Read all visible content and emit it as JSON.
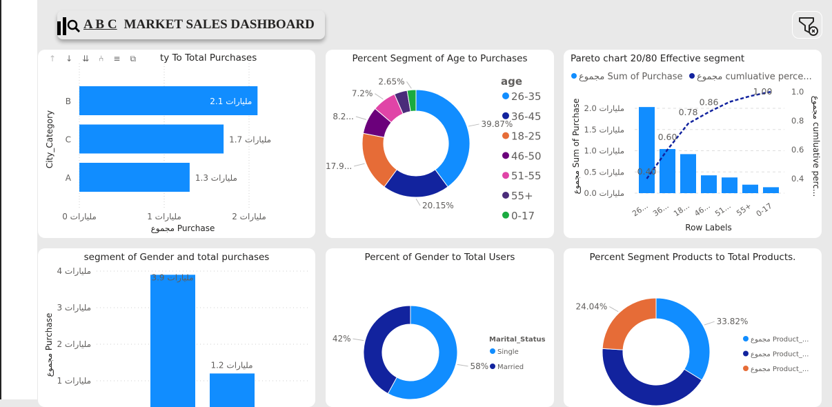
{
  "header": {
    "logo_text": "A B C",
    "title": "MARKET SALES DASHBOARD",
    "filter_icon": "filter-clear-icon"
  },
  "city_chart": {
    "title": "ty To Total Purchases",
    "toolbar_icons": [
      "arrow-up-icon",
      "arrow-down-icon",
      "double-arrow-down-icon",
      "expand-hierarchy-icon",
      "filter-icon",
      "focus-mode-icon"
    ],
    "chart_data": {
      "type": "bar",
      "orientation": "horizontal",
      "categories": [
        "B",
        "C",
        "A"
      ],
      "values": [
        2.1,
        1.7,
        1.3
      ],
      "data_labels": [
        "مليارات 2.1",
        "مليارات 1.7",
        "مليارات 1.3"
      ],
      "xlabel": "مجموع Purchase",
      "ylabel": "City_Category",
      "xticks": [
        "مليارات 0",
        "مليارات 1",
        "مليارات 2"
      ],
      "xlim": [
        0,
        2.5
      ],
      "grid": true,
      "color": "#118dff"
    }
  },
  "age_chart": {
    "title": "Percent Segment of Age to Purchases",
    "chart_data": {
      "type": "pie",
      "donut": true,
      "legend_title": "age",
      "legend_position": "right",
      "categories": [
        "26-35",
        "36-45",
        "18-25",
        "46-50",
        "51-55",
        "55+",
        "0-17"
      ],
      "values": [
        39.87,
        20.15,
        17.93,
        8.2,
        7.2,
        3.9,
        2.65
      ],
      "data_labels": [
        "39.87%",
        "20.15%",
        "17.9...",
        "8.2...",
        "7.2%",
        "",
        "2.65%"
      ],
      "colors": [
        "#118dff",
        "#12239e",
        "#e66c37",
        "#6b007b",
        "#e044a7",
        "#4a2c7a",
        "#1aab40"
      ]
    }
  },
  "pareto_chart": {
    "title": "Pareto chart 20/80 Effective segment",
    "chart_data": {
      "type": "bar",
      "categories": [
        "26...",
        "36...",
        "18...",
        "46...",
        "51...",
        "55+",
        "0-17"
      ],
      "series": [
        {
          "name": "مجموع Sum of Purchase",
          "type": "bar",
          "values": [
            2.03,
            1.04,
            0.92,
            0.42,
            0.37,
            0.2,
            0.14
          ],
          "color": "#118dff"
        },
        {
          "name": "مجموع cumluative perce...",
          "type": "line",
          "axis": "right",
          "values": [
            0.4,
            0.6,
            0.78,
            0.86,
            0.93,
            0.97,
            1.0
          ],
          "color": "#12239e"
        }
      ],
      "data_labels": [
        "0.40",
        "0.60",
        "0.78",
        "0.86",
        "1.00"
      ],
      "xlabel": "Row Labels",
      "ylabel": "مجموع Sum of Purchase",
      "ylabel_right": "مجموع cumluative perc...",
      "yticks": [
        "مليارات 0.0",
        "مليارات 0.5",
        "مليارات 1.0",
        "مليارات 1.5",
        "مليارات 2.0"
      ],
      "yticks_right": [
        "0.4",
        "0.6",
        "0.8",
        "1.0"
      ],
      "ylim": [
        0,
        2.4
      ],
      "ylim_right": [
        0.3,
        1.0
      ],
      "legend_position": "top",
      "grid": true
    }
  },
  "gender_chart": {
    "title": "segment of Gender and total purchases",
    "chart_data": {
      "type": "bar",
      "values": [
        3.9,
        1.2
      ],
      "data_labels": [
        "مليارات 3.9",
        "مليارات 1.2"
      ],
      "ylabel": "مجموع Purchase",
      "yticks": [
        "مليارات 1",
        "مليارات 2",
        "مليارات 3",
        "مليارات 4"
      ],
      "ylim": [
        0,
        4
      ],
      "grid": true,
      "color": "#118dff"
    }
  },
  "marital_chart": {
    "title": "Percent of Gender to Total Users",
    "chart_data": {
      "type": "pie",
      "donut": true,
      "legend_title": "Marital_Status",
      "legend_position": "right",
      "categories": [
        "Single",
        "Married"
      ],
      "values": [
        58,
        42
      ],
      "data_labels": [
        "58%",
        "42%"
      ],
      "colors": [
        "#118dff",
        "#12239e"
      ]
    }
  },
  "products_chart": {
    "title": "Percent Segment Products to Total Products.",
    "chart_data": {
      "type": "pie",
      "donut": true,
      "legend_position": "right",
      "categories": [
        "مجموع Product_...",
        "مجموع Product_...",
        "مجموع Product_..."
      ],
      "values": [
        33.82,
        42.14,
        24.04
      ],
      "data_labels": [
        "33.82%",
        "",
        "24.04%"
      ],
      "colors": [
        "#118dff",
        "#12239e",
        "#e66c37"
      ]
    }
  }
}
